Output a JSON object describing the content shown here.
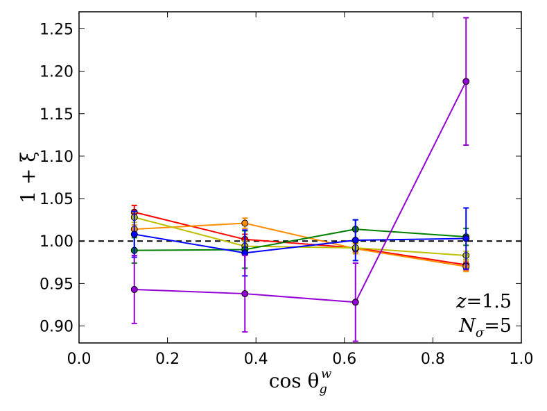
{
  "chart_data": {
    "type": "line",
    "xlabel": "cos θ",
    "xlabel_sub": "g",
    "xlabel_sup": "w",
    "ylabel": "1 + ξ",
    "xlim": [
      0.0,
      1.0
    ],
    "ylim": [
      0.88,
      1.27
    ],
    "xticks": [
      0.0,
      0.2,
      0.4,
      0.6,
      0.8,
      1.0
    ],
    "xtick_labels": [
      "0.0",
      "0.2",
      "0.4",
      "0.6",
      "0.8",
      "1.0"
    ],
    "yticks": [
      0.9,
      0.95,
      1.0,
      1.05,
      1.1,
      1.15,
      1.2,
      1.25
    ],
    "ytick_labels": [
      "0.90",
      "0.95",
      "1.00",
      "1.05",
      "1.10",
      "1.15",
      "1.20",
      "1.25"
    ],
    "reference_line": {
      "y": 1.0,
      "style": "dashed",
      "color": "#000000"
    },
    "annotations": {
      "z_symbol": "z",
      "z_value": "=1.5",
      "n_symbol": "N",
      "n_sub": "σ",
      "n_value": "=5"
    },
    "x": [
      0.125,
      0.375,
      0.625,
      0.875
    ],
    "series": [
      {
        "name": "red",
        "color": "#ff0000",
        "values": [
          1.034,
          1.002,
          0.992,
          0.972
        ],
        "errors": [
          0.008,
          0.006,
          0.005,
          0.006
        ]
      },
      {
        "name": "orange",
        "color": "#ff8c00",
        "values": [
          1.014,
          1.021,
          0.991,
          0.97
        ],
        "errors": [
          0.005,
          0.006,
          0.006,
          0.006
        ]
      },
      {
        "name": "yellow-green",
        "color": "#bfbf00",
        "values": [
          1.028,
          0.994,
          0.992,
          0.983
        ],
        "errors": [
          0.006,
          0.006,
          0.006,
          0.005
        ]
      },
      {
        "name": "green",
        "color": "#008000",
        "values": [
          0.989,
          0.99,
          1.014,
          1.005
        ],
        "errors": [
          0.015,
          0.022,
          0.011,
          0.01
        ]
      },
      {
        "name": "blue",
        "color": "#0000ff",
        "values": [
          1.008,
          0.986,
          1.001,
          1.003
        ],
        "errors": [
          0.027,
          0.027,
          0.024,
          0.036
        ]
      },
      {
        "name": "purple",
        "color": "#9400d3",
        "values": [
          0.943,
          0.938,
          0.928,
          1.188
        ],
        "errors": [
          0.04,
          0.045,
          0.046,
          0.075
        ]
      }
    ]
  }
}
